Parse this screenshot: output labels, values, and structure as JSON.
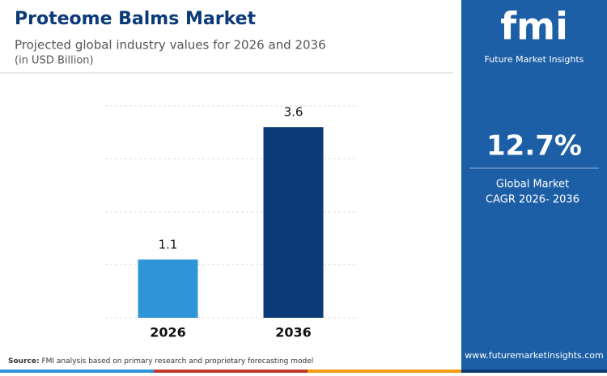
{
  "chart_data": {
    "type": "bar",
    "title": "Proteome Balms Market",
    "subtitle": "Projected global industry values for 2026 and 2036",
    "unit_note": "(in USD Billion)",
    "categories": [
      "2026",
      "2036"
    ],
    "values": [
      1.1,
      3.6
    ],
    "colors": [
      "#2e95d8",
      "#0a3a78"
    ],
    "ylim": [
      0,
      4
    ],
    "yticks": [
      0,
      1,
      2,
      3,
      4
    ],
    "grid": true
  },
  "sidebar": {
    "logo": "fmi",
    "brand": "Future Market Insights",
    "cagr": "12.7%",
    "cagr_label": [
      "Global Market",
      "CAGR 2026- 2036"
    ],
    "url": "www.futuremarketinsights.com"
  },
  "source": {
    "label": "Source:",
    "text": "FMI analysis based on primary research and proprietary forecasting model"
  }
}
